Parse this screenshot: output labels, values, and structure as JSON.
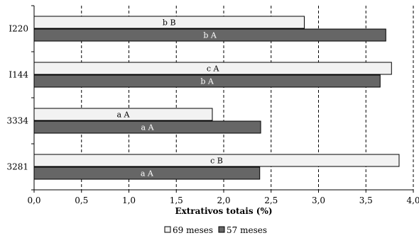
{
  "chart_data": {
    "type": "bar",
    "orientation": "horizontal",
    "xlabel": "Extrativos totais (%)",
    "xlim": [
      0,
      4.0
    ],
    "xticks": [
      "0,0",
      "0,5",
      "1,0",
      "1,5",
      "2,0",
      "2,5",
      "3,0",
      "3,5",
      "4,0"
    ],
    "grid": "vertical dashed",
    "legend_position": "bottom",
    "categories": [
      "I220",
      "I144",
      "3334",
      "3281"
    ],
    "series": [
      {
        "name": "69 meses",
        "color": "#f2f2f2",
        "label_color": "#000000",
        "values": [
          2.85,
          3.77,
          1.88,
          3.85
        ],
        "labels": [
          "b B",
          "c A",
          "a A",
          "c B"
        ]
      },
      {
        "name": "57 meses",
        "color": "#666666",
        "label_color": "#ffffff",
        "values": [
          3.71,
          3.65,
          2.39,
          2.38
        ],
        "labels": [
          "b A",
          "b A",
          "a A",
          "a A"
        ]
      }
    ]
  }
}
